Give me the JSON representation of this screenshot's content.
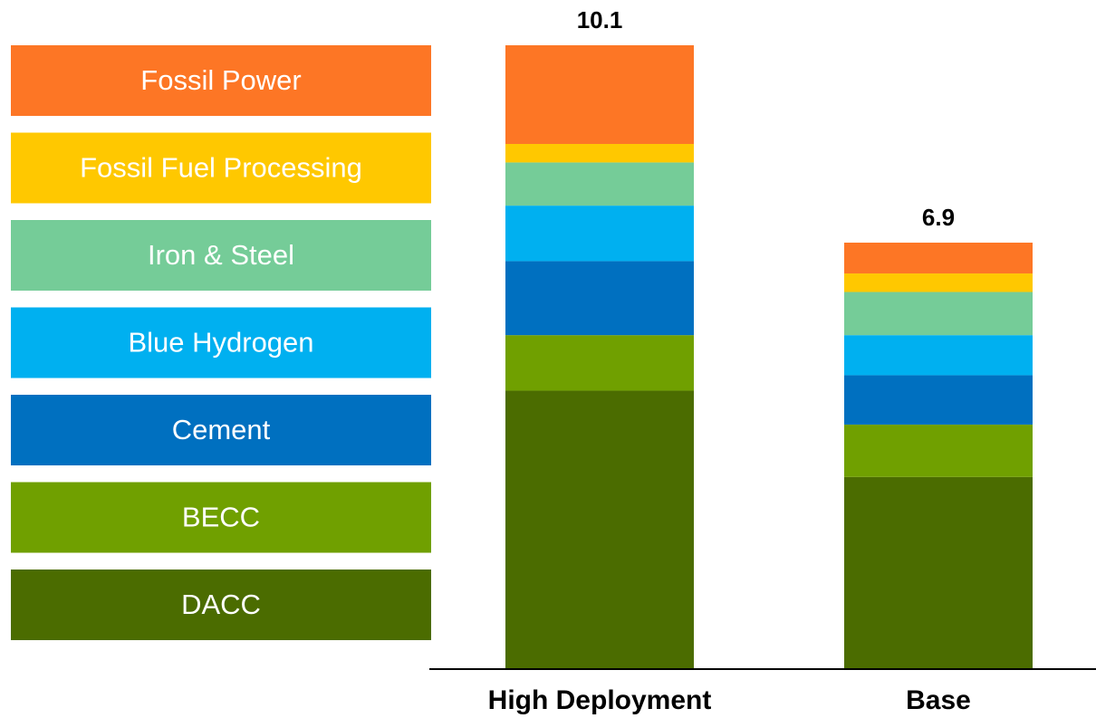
{
  "chart_data": {
    "type": "stacked_bar",
    "categories": [
      "High Deployment",
      "Base"
    ],
    "total_labels": [
      "10.1",
      "6.9"
    ],
    "series": [
      {
        "name": "DACC",
        "color": "#4b6c00",
        "values": [
          4.5,
          3.1
        ]
      },
      {
        "name": "BECC",
        "color": "#70a000",
        "values": [
          0.9,
          0.85
        ]
      },
      {
        "name": "Cement",
        "color": "#0070c0",
        "values": [
          1.2,
          0.8
        ]
      },
      {
        "name": "Blue Hydrogen",
        "color": "#00b0f0",
        "values": [
          0.9,
          0.65
        ]
      },
      {
        "name": "Iron & Steel",
        "color": "#75cc98",
        "values": [
          0.7,
          0.7
        ]
      },
      {
        "name": "Fossil Fuel Processing",
        "color": "#ffc800",
        "values": [
          0.3,
          0.3
        ]
      },
      {
        "name": "Fossil Power",
        "color": "#fd7625",
        "values": [
          1.6,
          0.5
        ]
      }
    ],
    "legend": "left"
  }
}
